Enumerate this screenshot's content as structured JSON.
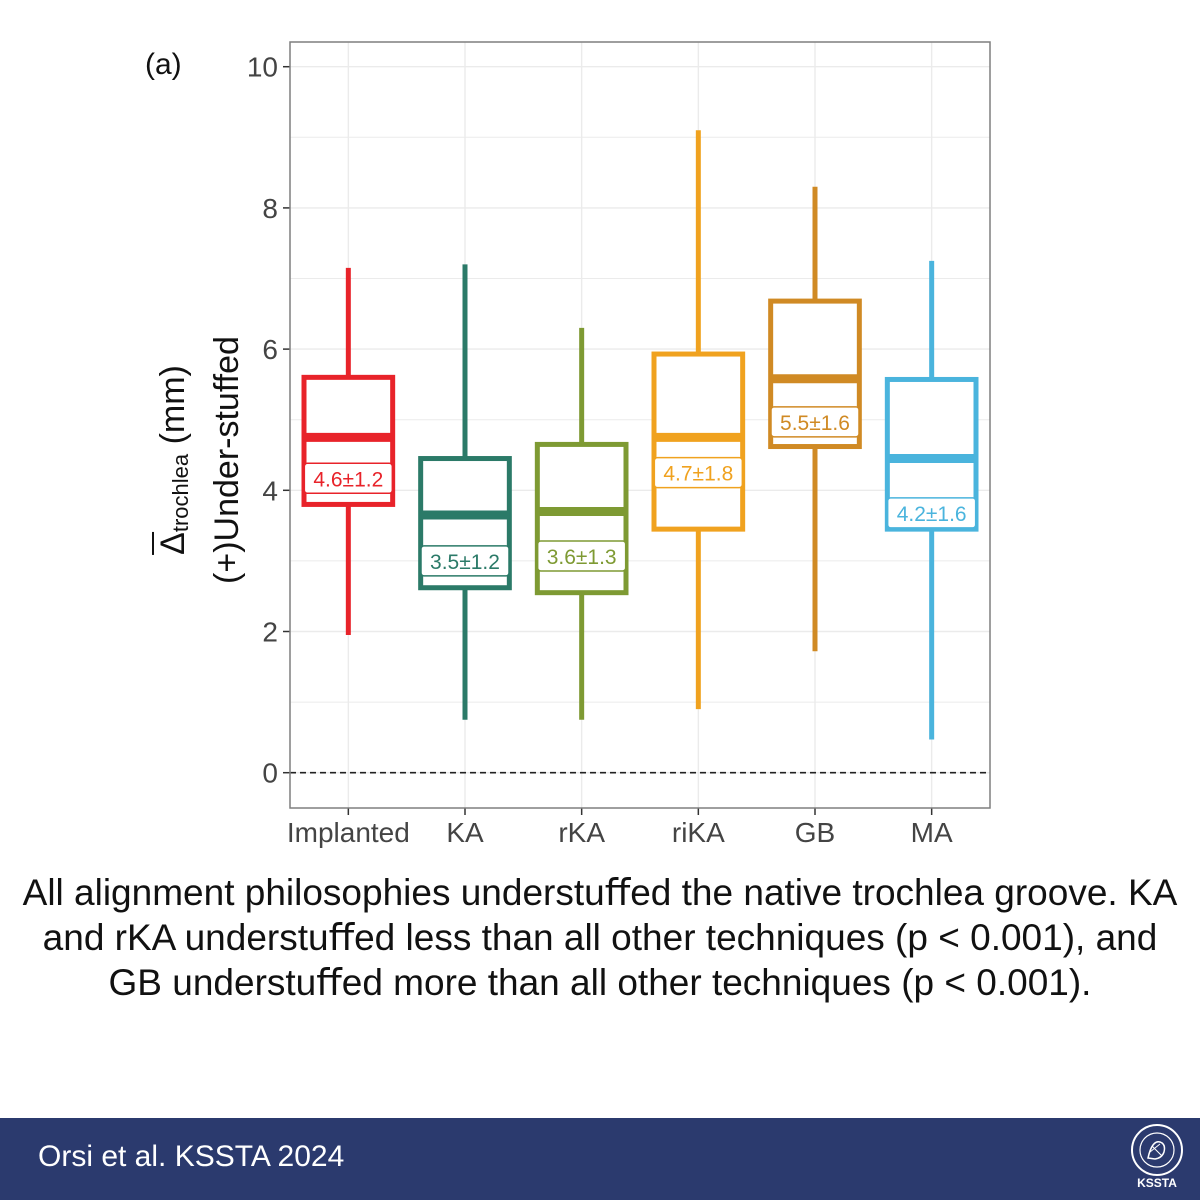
{
  "panel_label": "(a)",
  "y_label": {
    "symbol": "Δ",
    "subscript": "trochlea",
    "unit": " (mm)",
    "line2": "(+)Under-stuffed"
  },
  "chart_data": {
    "type": "boxplot",
    "ylim": [
      -0.5,
      10.35
    ],
    "yticks": [
      0,
      2,
      4,
      6,
      8,
      10
    ],
    "grid": true,
    "reference_line": 0,
    "series": [
      {
        "name": "Implanted",
        "color": "#e8232a",
        "lower_whisker": 1.95,
        "q1": 3.8,
        "median": 4.75,
        "q3": 5.6,
        "upper_whisker": 7.15,
        "label": "4.6±1.2",
        "label_y": 4.17
      },
      {
        "name": "KA",
        "color": "#2b7a68",
        "lower_whisker": 0.75,
        "q1": 2.62,
        "median": 3.65,
        "q3": 4.45,
        "upper_whisker": 7.2,
        "label": "3.5±1.2",
        "label_y": 3.0
      },
      {
        "name": "rKA",
        "color": "#7e9a33",
        "lower_whisker": 0.75,
        "q1": 2.55,
        "median": 3.7,
        "q3": 4.65,
        "upper_whisker": 6.3,
        "label": "3.6±1.3",
        "label_y": 3.07
      },
      {
        "name": "riKA",
        "color": "#f0a21f",
        "lower_whisker": 0.9,
        "q1": 3.45,
        "median": 4.75,
        "q3": 5.93,
        "upper_whisker": 9.1,
        "label": "4.7±1.8",
        "label_y": 4.25
      },
      {
        "name": "GB",
        "color": "#d08a24",
        "lower_whisker": 1.72,
        "q1": 4.62,
        "median": 5.58,
        "q3": 6.68,
        "upper_whisker": 8.3,
        "label": "5.5±1.6",
        "label_y": 4.97
      },
      {
        "name": "MA",
        "color": "#4ab4dd",
        "lower_whisker": 0.47,
        "q1": 3.45,
        "median": 4.45,
        "q3": 5.57,
        "upper_whisker": 7.25,
        "label": "4.2±1.6",
        "label_y": 3.68
      }
    ]
  },
  "caption": "All alignment philosophies understuﬀed the native trochlea groove. KA and rKA understuﬀed less than all other techniques (p < 0.001), and GB understuﬀed more than all other techniques (p < 0.001).",
  "footer": {
    "citation": "Orsi et al. KSSTA 2024",
    "logo_text": "KSSTA"
  },
  "colors": {
    "footer_bg": "#2b3a6e",
    "grid": "#ebebeb",
    "panel_border": "#7f7f7f"
  }
}
